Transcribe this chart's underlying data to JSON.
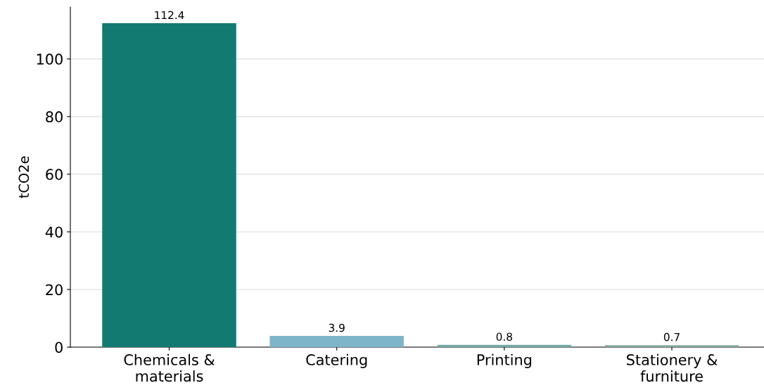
{
  "chart_data": {
    "type": "bar",
    "ylabel": "tCO2e",
    "categories": [
      "Chemicals &\nmaterials",
      "Catering",
      "Printing",
      "Stationery &\nfurniture"
    ],
    "values": [
      112.4,
      3.9,
      0.8,
      0.7
    ],
    "colors": [
      "#137a72",
      "#7fb5c8",
      "#72aaa6",
      "#86a89c"
    ],
    "data_labels": true,
    "ylim": [
      0,
      118
    ],
    "yticks": [
      0,
      20,
      40,
      60,
      80,
      100
    ],
    "grid": "y"
  }
}
